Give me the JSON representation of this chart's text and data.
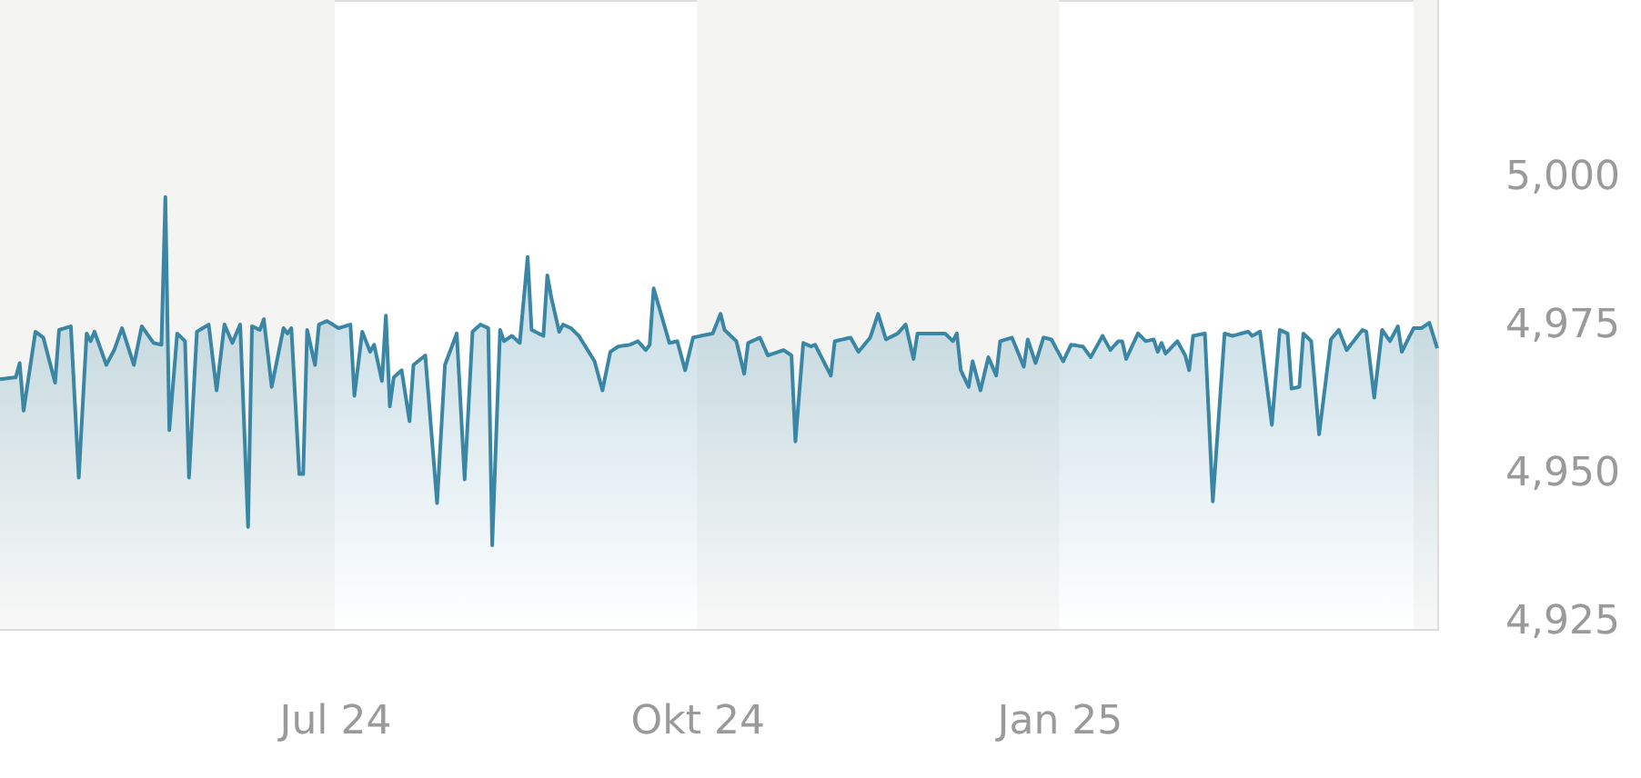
{
  "chart_data": {
    "type": "area",
    "xlim": [
      "2024-04-07",
      "2025-04-07"
    ],
    "ylim": [
      4923.5,
      5029.5
    ],
    "yticks": [
      {
        "value": 4925,
        "label": "4,925"
      },
      {
        "value": 4950,
        "label": "4,950"
      },
      {
        "value": 4975,
        "label": "4,975"
      },
      {
        "value": 5000,
        "label": "5,000"
      }
    ],
    "xticks": [
      {
        "value": "2024-07-01",
        "label": "Jul 24"
      },
      {
        "value": "2024-10-01",
        "label": "Okt 24"
      },
      {
        "value": "2025-01-01",
        "label": "Jan 25"
      }
    ],
    "grid": false,
    "marker": "none",
    "line_style": "solid",
    "bands": [
      {
        "axis": "x",
        "from": "2024-04-07",
        "to": "2024-07-01",
        "color": "#f4f4f2"
      },
      {
        "axis": "x",
        "from": "2024-10-01",
        "to": "2025-01-01",
        "color": "#f4f4f2"
      },
      {
        "axis": "x",
        "from": "2025-04-01",
        "to": "2025-04-07",
        "color": "#f4f4f2"
      }
    ],
    "series": [
      {
        "color": "#3a86a4",
        "x": [
          "2024-04-07",
          "2024-04-11",
          "2024-04-12",
          "2024-04-13",
          "2024-04-16",
          "2024-04-18",
          "2024-04-21",
          "2024-04-22",
          "2024-04-25",
          "2024-04-27",
          "2024-04-29",
          "2024-04-30",
          "2024-05-01",
          "2024-05-04",
          "2024-05-06",
          "2024-05-08",
          "2024-05-11",
          "2024-05-13",
          "2024-05-16",
          "2024-05-18",
          "2024-05-19",
          "2024-05-20",
          "2024-05-22",
          "2024-05-24",
          "2024-05-25",
          "2024-05-27",
          "2024-05-30",
          "2024-06-01",
          "2024-06-03",
          "2024-06-05",
          "2024-06-07",
          "2024-06-09",
          "2024-06-10",
          "2024-06-12",
          "2024-06-13",
          "2024-06-15",
          "2024-06-18",
          "2024-06-19",
          "2024-06-20",
          "2024-06-22",
          "2024-06-23",
          "2024-06-24",
          "2024-06-26",
          "2024-06-27",
          "2024-06-29",
          "2024-07-02",
          "2024-07-05",
          "2024-07-06",
          "2024-07-08",
          "2024-07-10",
          "2024-07-11",
          "2024-07-13",
          "2024-07-14",
          "2024-07-15",
          "2024-07-16",
          "2024-07-18",
          "2024-07-20",
          "2024-07-21",
          "2024-07-24",
          "2024-07-27",
          "2024-07-29",
          "2024-08-01",
          "2024-08-03",
          "2024-08-05",
          "2024-08-07",
          "2024-08-09",
          "2024-08-10",
          "2024-08-12",
          "2024-08-13",
          "2024-08-15",
          "2024-08-17",
          "2024-08-19",
          "2024-08-20",
          "2024-08-23",
          "2024-08-24",
          "2024-08-25",
          "2024-08-27",
          "2024-08-28",
          "2024-08-30",
          "2024-09-01",
          "2024-09-05",
          "2024-09-07",
          "2024-09-09",
          "2024-09-11",
          "2024-09-14",
          "2024-09-16",
          "2024-09-18",
          "2024-09-19",
          "2024-09-20",
          "2024-09-22",
          "2024-09-24",
          "2024-09-26",
          "2024-09-28",
          "2024-09-30",
          "2024-10-02",
          "2024-10-05",
          "2024-10-07",
          "2024-10-08",
          "2024-10-11",
          "2024-10-13",
          "2024-10-14",
          "2024-10-17",
          "2024-10-19",
          "2024-10-23",
          "2024-10-25",
          "2024-10-26",
          "2024-10-28",
          "2024-10-30",
          "2024-10-31",
          "2024-11-04",
          "2024-11-05",
          "2024-11-09",
          "2024-11-11",
          "2024-11-14",
          "2024-11-16",
          "2024-11-18",
          "2024-11-21",
          "2024-11-23",
          "2024-11-25",
          "2024-11-26",
          "2024-12-03",
          "2024-12-05",
          "2024-12-06",
          "2024-12-07",
          "2024-12-09",
          "2024-12-10",
          "2024-12-12",
          "2024-12-14",
          "2024-12-16",
          "2024-12-17",
          "2024-12-20",
          "2024-12-23",
          "2024-12-24",
          "2024-12-26",
          "2024-12-28",
          "2024-12-30",
          "2025-01-02",
          "2025-01-04",
          "2025-01-07",
          "2025-01-09",
          "2025-01-12",
          "2025-01-14",
          "2025-01-16",
          "2025-01-17",
          "2025-01-18",
          "2025-01-21",
          "2025-01-23",
          "2025-01-25",
          "2025-01-26",
          "2025-01-27",
          "2025-01-28",
          "2025-01-31",
          "2025-02-02",
          "2025-02-03",
          "2025-02-04",
          "2025-02-07",
          "2025-02-09",
          "2025-02-12",
          "2025-02-14",
          "2025-02-18",
          "2025-02-19",
          "2025-02-21",
          "2025-02-24",
          "2025-02-26",
          "2025-02-28",
          "2025-03-01",
          "2025-03-03",
          "2025-03-04",
          "2025-03-06",
          "2025-03-08",
          "2025-03-11",
          "2025-03-13",
          "2025-03-15",
          "2025-03-19",
          "2025-03-20",
          "2025-03-22",
          "2025-03-24",
          "2025-03-26",
          "2025-03-28",
          "2025-03-29",
          "2025-04-01",
          "2025-04-03",
          "2025-04-05",
          "2025-04-07"
        ],
        "values": [
          4965.6,
          4965.9,
          4968.3,
          4960.3,
          4973.6,
          4972.6,
          4965.0,
          4973.9,
          4974.5,
          4949.0,
          4973.3,
          4972.0,
          4973.6,
          4968.0,
          4970.5,
          4974.2,
          4968.0,
          4974.5,
          4971.7,
          4971.4,
          4996.3,
          4957.0,
          4973.3,
          4972.0,
          4949.0,
          4973.6,
          4974.8,
          4963.7,
          4974.8,
          4971.7,
          4974.8,
          4940.7,
          4974.5,
          4973.9,
          4975.7,
          4964.3,
          4974.2,
          4973.3,
          4974.2,
          4949.6,
          4949.6,
          4973.9,
          4968.0,
          4974.8,
          4975.4,
          4974.2,
          4974.8,
          4962.8,
          4973.6,
          4970.2,
          4971.4,
          4965.3,
          4976.3,
          4961.0,
          4965.9,
          4967.1,
          4958.5,
          4968.0,
          4969.6,
          4944.7,
          4968.0,
          4973.3,
          4948.7,
          4973.6,
          4974.8,
          4974.2,
          4937.6,
          4973.9,
          4972.0,
          4972.9,
          4971.7,
          4986.2,
          4973.9,
          4972.9,
          4983.1,
          4979.4,
          4973.6,
          4974.8,
          4974.2,
          4972.9,
          4968.6,
          4963.7,
          4970.2,
          4971.1,
          4971.4,
          4972.0,
          4970.5,
          4971.4,
          4980.9,
          4976.3,
          4971.7,
          4972.0,
          4967.1,
          4972.6,
          4972.9,
          4973.3,
          4976.6,
          4973.9,
          4972.0,
          4966.5,
          4971.7,
          4972.6,
          4969.6,
          4970.5,
          4969.6,
          4955.1,
          4971.7,
          4971.1,
          4971.4,
          4966.2,
          4972.0,
          4972.6,
          4970.2,
          4972.6,
          4976.6,
          4972.3,
          4973.3,
          4974.8,
          4969.0,
          4973.3,
          4973.3,
          4972.0,
          4973.3,
          4967.1,
          4964.3,
          4968.6,
          4963.7,
          4969.3,
          4966.2,
          4972.0,
          4972.6,
          4967.7,
          4972.3,
          4968.3,
          4972.6,
          4972.3,
          4968.6,
          4971.4,
          4971.1,
          4969.3,
          4972.9,
          4970.5,
          4972.0,
          4972.0,
          4969.0,
          4973.3,
          4972.0,
          4972.3,
          4970.2,
          4971.7,
          4969.9,
          4972.0,
          4969.6,
          4967.1,
          4972.9,
          4973.3,
          4945.0,
          4973.3,
          4972.9,
          4973.6,
          4972.9,
          4973.6,
          4957.9,
          4973.9,
          4973.3,
          4964.0,
          4964.3,
          4973.3,
          4972.0,
          4956.3,
          4972.3,
          4973.9,
          4970.5,
          4973.9,
          4973.6,
          4962.5,
          4973.9,
          4972.0,
          4974.5,
          4970.2,
          4974.2,
          4974.2,
          4975.1,
          4970.8
        ]
      }
    ]
  }
}
